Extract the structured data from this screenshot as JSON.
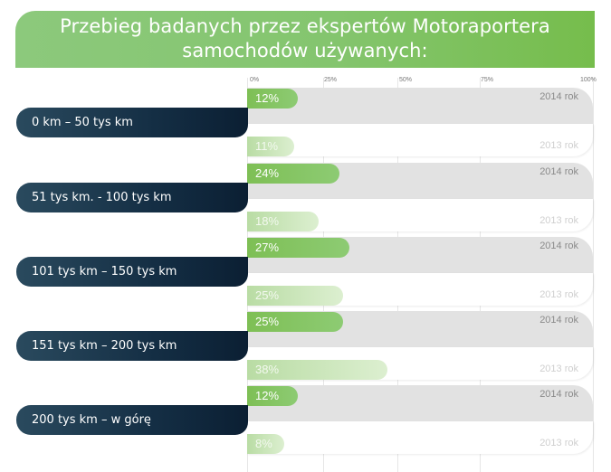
{
  "header": {
    "title": "Przebieg badanych przez ekspertów Motoraportera samochodów używanych:"
  },
  "axis": {
    "ticks": [
      "0%",
      "25%",
      "50%",
      "75%",
      "100%"
    ]
  },
  "colors": {
    "header_green": "#84c56e",
    "bar_2014": "#7ebf55",
    "bar_2013": "#c6e3b3",
    "label_navy": "#142e44",
    "track_gray": "#e2e2e2"
  },
  "groups": [
    {
      "label": "0 km – 50 tys km",
      "v2014": "12%",
      "v2013": "11%",
      "y2014": "2014 rok",
      "y2013": "2013 rok"
    },
    {
      "label": "51 tys km. - 100 tys km",
      "v2014": "24%",
      "v2013": "18%",
      "y2014": "2014 rok",
      "y2013": "2013 rok"
    },
    {
      "label": "101 tys km – 150 tys km",
      "v2014": "27%",
      "v2013": "25%",
      "y2014": "2014 rok",
      "y2013": "2013 rok"
    },
    {
      "label": "151 tys km – 200 tys km",
      "v2014": "25%",
      "v2013": "38%",
      "y2014": "2014 rok",
      "y2013": "2013 rok"
    },
    {
      "label": "200 tys km – w górę",
      "v2014": "12%",
      "v2013": "8%",
      "y2014": "2014 rok",
      "y2013": "2013 rok"
    }
  ],
  "chart_data": {
    "type": "bar",
    "orientation": "horizontal",
    "title": "Przebieg badanych przez ekspertów Motoraportera samochodów używanych:",
    "categories": [
      "0 km – 50 tys km",
      "51 tys km. - 100 tys km",
      "101 tys km – 150 tys km",
      "151 tys km – 200 tys km",
      "200 tys km – w górę"
    ],
    "series": [
      {
        "name": "2014 rok",
        "values": [
          12,
          24,
          27,
          25,
          12
        ]
      },
      {
        "name": "2013 rok",
        "values": [
          11,
          18,
          25,
          38,
          8
        ]
      }
    ],
    "xlabel": "",
    "ylabel": "",
    "xlim": [
      0,
      100
    ],
    "x_ticks": [
      "0%",
      "25%",
      "50%",
      "75%",
      "100%"
    ],
    "grid": true,
    "legend": "inline labels per bar (2014 rok / 2013 rok)"
  }
}
